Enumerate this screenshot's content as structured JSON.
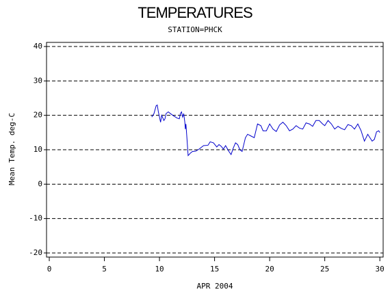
{
  "chart_data": {
    "type": "line",
    "title": "TEMPERATURES",
    "subtitle": "STATION=PHCK",
    "x_label": "APR 2004",
    "y_label": "Mean Temp. deg-C",
    "xlim": [
      -0.25,
      30.3
    ],
    "xticks": [
      0,
      5,
      10,
      15,
      20,
      25,
      30
    ],
    "ylim": [
      -21.2,
      41.2
    ],
    "yticks": [
      -20,
      -10,
      0,
      10,
      20,
      30,
      40
    ],
    "grid": true,
    "series": [
      {
        "name": "Mean Temp",
        "color": "#0000cc",
        "x": [
          9.3,
          9.5,
          9.7,
          9.8,
          9.9,
          10.0,
          10.1,
          10.2,
          10.4,
          10.5,
          10.6,
          10.8,
          11.0,
          11.3,
          11.6,
          11.8,
          11.9,
          12.0,
          12.1,
          12.2,
          12.3,
          12.35,
          12.4,
          12.5,
          12.6,
          12.8,
          13.0,
          13.3,
          13.6,
          14.0,
          14.4,
          14.6,
          14.9,
          15.2,
          15.4,
          15.6,
          15.8,
          16.0,
          16.3,
          16.5,
          16.7,
          16.9,
          17.1,
          17.3,
          17.5,
          17.8,
          18.0,
          18.3,
          18.6,
          18.9,
          19.2,
          19.4,
          19.7,
          20.0,
          20.3,
          20.6,
          20.9,
          21.2,
          21.5,
          21.8,
          22.1,
          22.4,
          22.7,
          23.0,
          23.3,
          23.6,
          23.9,
          24.2,
          24.5,
          24.8,
          25.0,
          25.3,
          25.6,
          25.9,
          26.2,
          26.5,
          26.8,
          27.1,
          27.4,
          27.7,
          28.0,
          28.3,
          28.6,
          28.9,
          29.1,
          29.3,
          29.5,
          29.7,
          29.9,
          30.0
        ],
        "values": [
          19.5,
          20.5,
          22.8,
          23,
          21,
          19.5,
          18,
          20,
          18.5,
          19,
          20.5,
          21,
          20.5,
          19.8,
          19.2,
          19,
          20.5,
          21,
          19.5,
          20.5,
          18,
          16,
          17.5,
          13,
          8.3,
          9,
          9.5,
          9.6,
          10.2,
          11.2,
          11.3,
          12.3,
          12,
          10.8,
          11.5,
          11,
          10.2,
          11.2,
          9.5,
          8.6,
          10.5,
          12,
          11.5,
          10,
          9.5,
          13.5,
          14.5,
          14,
          13.5,
          17.5,
          17,
          15.5,
          15.5,
          17.5,
          16,
          15.3,
          17.2,
          18,
          17,
          15.5,
          16,
          17,
          16.3,
          16,
          17.8,
          17.5,
          16.8,
          18.5,
          18.5,
          17.5,
          17,
          18.5,
          17.5,
          16,
          16.8,
          16.2,
          15.8,
          17.3,
          17,
          16,
          17.5,
          15.5,
          12.5,
          14.5,
          13.5,
          12.5,
          13,
          15.2,
          15.5,
          15
        ]
      }
    ]
  }
}
